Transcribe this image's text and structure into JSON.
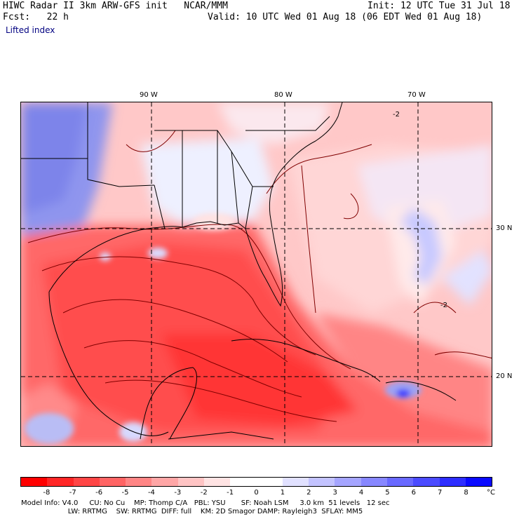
{
  "header": {
    "title_left": "HIWC Radar II 3km ARW-GFS init   NCAR/MMM",
    "init": "Init: 12 UTC Tue 31 Jul 18",
    "fcst": "Fcst:   22 h",
    "valid": "Valid: 10 UTC Wed 01 Aug 18 (06 EDT Wed 01 Aug 18)",
    "field": "Lifted index"
  },
  "map": {
    "lon_labels": [
      "90 W",
      "80 W",
      "70 W"
    ],
    "lat_labels": [
      "30 N",
      "20 N"
    ],
    "contour_labels": [
      "-2",
      "-2"
    ]
  },
  "colorbar": {
    "colors": [
      "#ff0000",
      "#ff2626",
      "#ff4545",
      "#ff6464",
      "#ff8585",
      "#ffa6a6",
      "#ffc4c4",
      "#ffe3e3",
      "#ffffff",
      "#ffffff",
      "#e1e1ff",
      "#c3c3ff",
      "#a5a5ff",
      "#8787ff",
      "#6969ff",
      "#4b4bff",
      "#2d2dff",
      "#0a0aff"
    ],
    "tick_labels": [
      "-8",
      "-7",
      "-6",
      "-5",
      "-4",
      "-3",
      "-2",
      "-1",
      "0",
      "1",
      "2",
      "3",
      "4",
      "5",
      "6",
      "7",
      "8"
    ],
    "unit": "°C"
  },
  "model_info": {
    "line1": "Model Info: V4.0     CU: No Cu    MP: Thomp C/A   PBL: YSU       SF: Noah LSM     3.0 km  51 levels   12 sec",
    "line2": "                     LW: RRTMG    SW: RRTMG  DIFF: full    KM: 2D Smagor DAMP: Rayleigh3  SFLAY: MM5"
  }
}
